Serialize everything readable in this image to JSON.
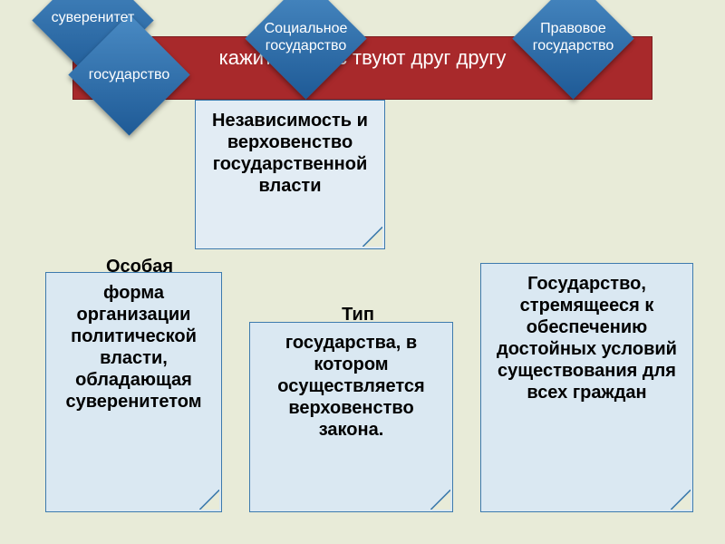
{
  "colors": {
    "page_bg": "#e8ebd8",
    "banner_bg": "#a8292b",
    "banner_border": "#7a1e20",
    "diamond_gradient_from": "#4a8bc4",
    "diamond_gradient_to": "#1e5a96",
    "card_bg": "#dae8f2",
    "card_border": "#3d7aad",
    "text_white": "#ffffff",
    "text_black": "#000000"
  },
  "banner": {
    "text_visible": "кажит                                 ы    \n             нии с               твуют друг другу"
  },
  "diamonds": [
    {
      "label": "суверенитет"
    },
    {
      "label": "государство"
    },
    {
      "label": "Социальное государство"
    },
    {
      "label": "Правовое государство"
    }
  ],
  "cards": {
    "top": {
      "text": "Независимость и верховенство государственной власти"
    },
    "left": {
      "overhang": "Особая",
      "text": "форма организации политической власти, обладающая суверенитетом"
    },
    "middle": {
      "overhang": "Тип",
      "text": "государства, в котором осуществляется верховенство закона."
    },
    "right": {
      "text": "Государство, стремящееся к обеспечению достойных условий существования для  всех граждан"
    }
  },
  "fontsize": {
    "diamond_label": 16,
    "card_text": 20
  }
}
